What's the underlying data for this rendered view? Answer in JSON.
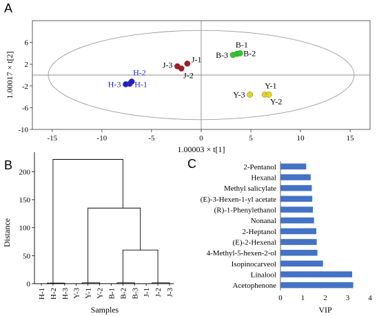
{
  "panels": {
    "a": "A",
    "b": "B",
    "c": "C"
  },
  "chart_data": [
    {
      "type": "scatter",
      "xlabel": "1.00003 × t[1]",
      "ylabel": "1.00017 × t[2]",
      "xlim": [
        -17,
        17
      ],
      "ylim": [
        -10,
        10
      ],
      "xticks": [
        -15,
        -10,
        -5,
        0,
        5,
        10,
        15
      ],
      "yticks": [
        -10,
        -6,
        -2,
        2,
        6
      ],
      "ellipse": {
        "rx": 15.4,
        "ry": 8.2
      },
      "series": [
        {
          "name": "H",
          "color": "#1f1fd1",
          "labels": [
            "H-1",
            "H-2",
            "H-3"
          ],
          "points": [
            [
              -7.2,
              -1.6
            ],
            [
              -7.0,
              -1.2
            ],
            [
              -7.6,
              -1.7
            ]
          ]
        },
        {
          "name": "J",
          "color": "#a51c1c",
          "labels": [
            "J-1",
            "J-2",
            "J-3"
          ],
          "points": [
            [
              -1.4,
              2.1
            ],
            [
              -2.0,
              1.2
            ],
            [
              -2.4,
              1.6
            ]
          ]
        },
        {
          "name": "B",
          "color": "#2ec82e",
          "labels": [
            "B-1",
            "B-2",
            "B-3"
          ],
          "points": [
            [
              3.6,
              3.9
            ],
            [
              3.9,
              4.0
            ],
            [
              3.2,
              3.7
            ]
          ]
        },
        {
          "name": "Y",
          "color": "#e8d51e",
          "labels": [
            "Y-1",
            "Y-2",
            "Y-3"
          ],
          "points": [
            [
              6.4,
              -3.6
            ],
            [
              6.8,
              -3.6
            ],
            [
              4.9,
              -3.6
            ]
          ]
        }
      ]
    },
    {
      "type": "dendrogram",
      "xlabel": "Samples",
      "ylabel": "Distance",
      "ylim": [
        0,
        230
      ],
      "yticks": [
        0,
        50,
        100,
        150,
        200
      ],
      "leaves": [
        "H-1",
        "H-2",
        "H-3",
        "Y-3",
        "Y-1",
        "Y-2",
        "B-1",
        "B-2",
        "B-3",
        "J-1",
        "J-2",
        "J-3"
      ],
      "merges": [
        {
          "left": [
            0,
            1
          ],
          "right": [
            2
          ],
          "height": 1.0
        },
        {
          "left": [
            3,
            4
          ],
          "right": [
            5
          ],
          "height": 1.5
        },
        {
          "left": [
            6,
            7
          ],
          "right": [
            8
          ],
          "height": 1.5
        },
        {
          "left": [
            9,
            10
          ],
          "right": [
            11
          ],
          "height": 1.5
        },
        {
          "left": [
            6,
            8
          ],
          "right": [
            9,
            11
          ],
          "height": 60
        },
        {
          "left": [
            3,
            5
          ],
          "right": [
            6,
            11
          ],
          "height": 135
        },
        {
          "left": [
            0,
            2
          ],
          "right": [
            3,
            11
          ],
          "height": 222
        }
      ]
    },
    {
      "type": "bar",
      "orientation": "horizontal",
      "xlabel": "VIP",
      "xlim": [
        0,
        4
      ],
      "xticks": [
        0,
        1,
        2,
        3,
        4
      ],
      "color": "#4472c4",
      "categories": [
        "2-Pentanol",
        "Hexanal",
        "Methyl salicylate",
        "(E)-3-Hexen-1-yl acetate",
        "(R)-1-Phenylethanol",
        "Nonanal",
        "2-Heptanol",
        "(E)-2-Hexenal",
        "4-Methyl-5-hexen-2-ol",
        "Isopinocarveol",
        "Linalool",
        "Acetophenone"
      ],
      "values": [
        1.15,
        1.35,
        1.4,
        1.42,
        1.45,
        1.5,
        1.6,
        1.62,
        1.65,
        1.9,
        3.2,
        3.25
      ]
    }
  ]
}
